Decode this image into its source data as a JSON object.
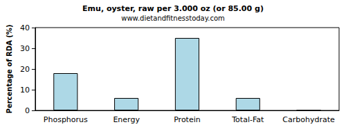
{
  "chart_data": {
    "type": "bar",
    "title": "Emu, oyster, raw per 3.000 oz (or 85.00 g)",
    "subtitle": "www.dietandfitnesstoday.com",
    "ylabel": "Percentage of RDA (%)",
    "categories": [
      "Phosphorus",
      "Energy",
      "Protein",
      "Total-Fat",
      "Carbohydrate"
    ],
    "values": [
      18,
      6,
      35,
      6,
      0
    ],
    "color": "#add8e6",
    "ylim": [
      0,
      40
    ],
    "yticks": [
      0,
      10,
      20,
      30,
      40
    ],
    "grid": false
  }
}
